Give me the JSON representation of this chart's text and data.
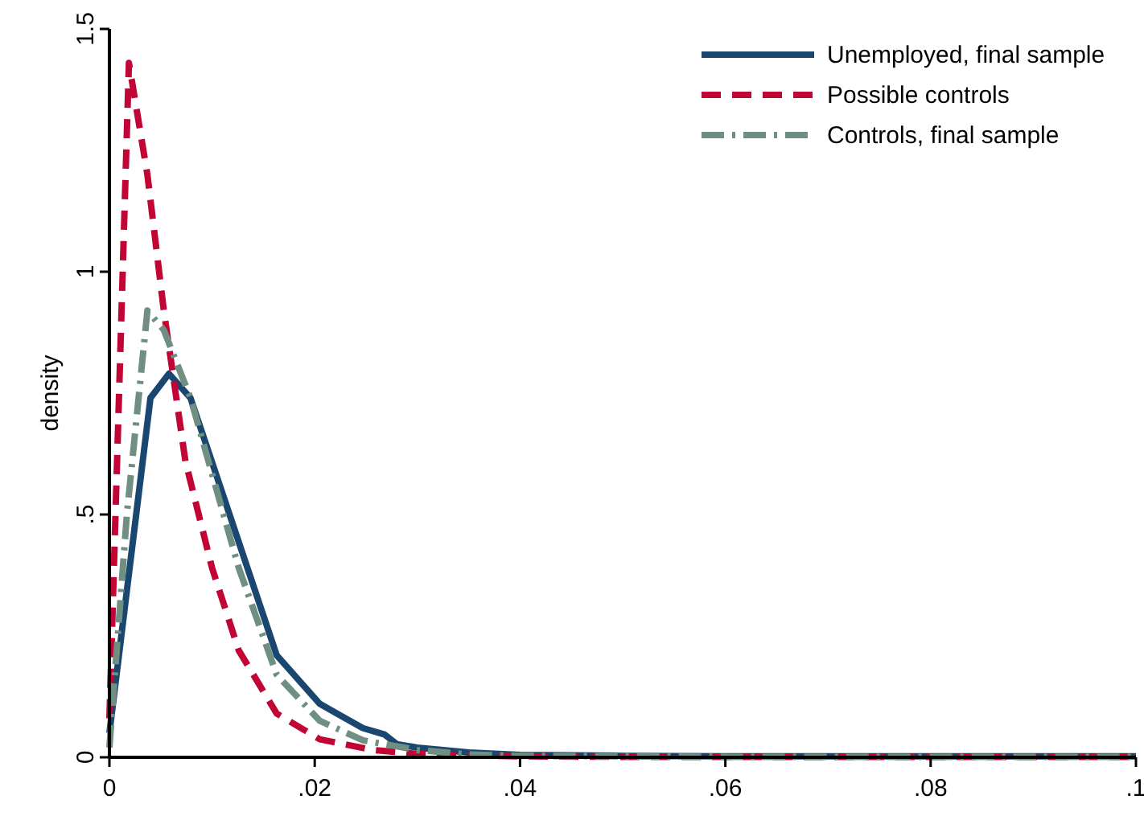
{
  "chart_data": {
    "type": "line",
    "ylabel": "density",
    "xlim": [
      0,
      0.1
    ],
    "ylim": [
      0,
      1.5
    ],
    "xticks": [
      0,
      {
        "value": 0.02,
        "label": ".02"
      },
      {
        "value": 0.04,
        "label": ".04"
      },
      {
        "value": 0.06,
        "label": ".06"
      },
      {
        "value": 0.08,
        "label": ".08"
      },
      {
        "value": 0.1,
        "label": ".1"
      }
    ],
    "yticks": [
      0,
      {
        "value": 0.5,
        "label": ".5"
      },
      1,
      1.5
    ],
    "grid": false,
    "legend": "top right",
    "marker": "none",
    "series": [
      {
        "name": "Unemployed, final sample",
        "color": "#1a476f",
        "line_style": "solid",
        "x": [
          0,
          0.004,
          0.0058,
          0.0079,
          0.0163,
          0.0205,
          0.0225,
          0.0247,
          0.0268,
          0.028,
          0.03,
          0.035,
          0.04,
          0.05,
          0.06,
          0.08,
          0.1
        ],
        "values": [
          0.05,
          0.74,
          0.79,
          0.74,
          0.21,
          0.11,
          0.086,
          0.06,
          0.047,
          0.027,
          0.02,
          0.01,
          0.005,
          0.003,
          0.002,
          0.002,
          0.002
        ]
      },
      {
        "name": "Possible controls",
        "color": "#c10534",
        "line_style": "dashed",
        "x": [
          0,
          0.0019,
          0.0037,
          0.0053,
          0.0074,
          0.01,
          0.0126,
          0.0163,
          0.0205,
          0.0257,
          0.03,
          0.04,
          0.05,
          0.06,
          0.08,
          0.1
        ],
        "values": [
          0.08,
          1.43,
          1.2,
          0.92,
          0.61,
          0.39,
          0.22,
          0.09,
          0.037,
          0.015,
          0.007,
          0.002,
          0.001,
          0.001,
          0.001,
          0.001
        ]
      },
      {
        "name": "Controls, final sample",
        "color": "#6f8f82",
        "line_style": "dashdot",
        "x": [
          0,
          0.0017,
          0.0037,
          0.0053,
          0.0079,
          0.0126,
          0.0163,
          0.0205,
          0.0247,
          0.03,
          0.035,
          0.04,
          0.05,
          0.06,
          0.08,
          0.1
        ],
        "values": [
          0.02,
          0.5,
          0.92,
          0.88,
          0.74,
          0.39,
          0.17,
          0.075,
          0.035,
          0.015,
          0.006,
          0.003,
          0.002,
          0.001,
          0.001,
          0.001
        ]
      }
    ]
  }
}
